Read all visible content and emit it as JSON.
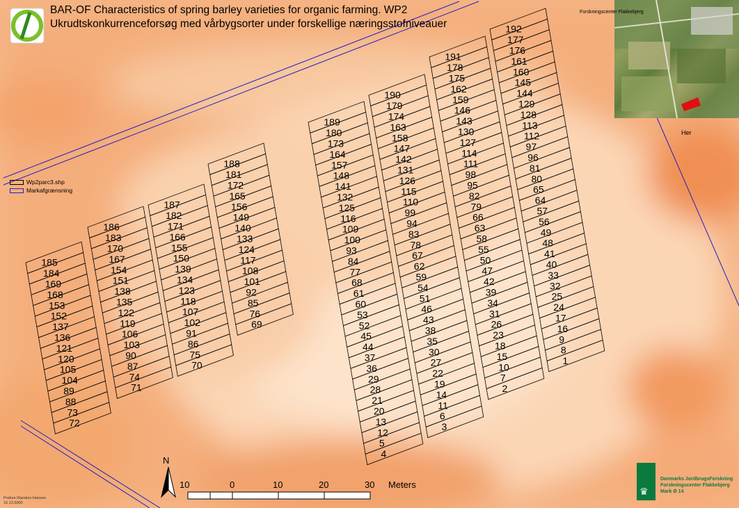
{
  "title_line1": "BAR-OF Characteristics of spring barley varieties for organic farming. WP2",
  "title_line2": "Ukrudtskonkurrenceforsøg med vårbygsorter under forskellige næringsstofniveauer",
  "inset_label": "Forskningscenter Flakkebjerg",
  "inset_marker_label": "Her",
  "legend": [
    {
      "label": "Wp2parc3.shp",
      "color": "#000000"
    },
    {
      "label": "Markafgrænsning",
      "color": "#2020c0"
    }
  ],
  "north_label": "N",
  "scale_labels": [
    "10",
    "0",
    "10",
    "20",
    "30"
  ],
  "scale_unit": "Meters",
  "author_line1": "Preben Klarskov Hansen",
  "author_line2": "10.12.0000",
  "org_lines": [
    "Danmarks JordbrugsForskning",
    "Forskningscenter Flakkebjerg",
    "Mark Ø 14"
  ],
  "colors": {
    "accent_green": "#0b7a3f",
    "boundary_blue": "#2020c0",
    "marker_red": "#e01010"
  },
  "blocks": [
    {
      "plots": [
        "185",
        "184",
        "169",
        "168",
        "153",
        "152",
        "137",
        "136",
        "121",
        "120",
        "105",
        "104",
        "89",
        "88",
        "73",
        "72"
      ]
    },
    {
      "plots": [
        "186",
        "183",
        "170",
        "167",
        "154",
        "151",
        "138",
        "135",
        "122",
        "119",
        "106",
        "103",
        "90",
        "87",
        "74",
        "71"
      ]
    },
    {
      "plots": [
        "187",
        "182",
        "171",
        "166",
        "155",
        "150",
        "139",
        "134",
        "123",
        "118",
        "107",
        "102",
        "91",
        "86",
        "75",
        "70"
      ]
    },
    {
      "plots": [
        "188",
        "181",
        "172",
        "165",
        "156",
        "149",
        "140",
        "133",
        "124",
        "117",
        "108",
        "101",
        "92",
        "85",
        "76",
        "69"
      ]
    },
    {
      "plots": [
        "189",
        "180",
        "173",
        "164",
        "157",
        "148",
        "141",
        "132",
        "125",
        "116",
        "109",
        "100",
        "93",
        "84",
        "77",
        "68",
        "61",
        "60",
        "53",
        "52",
        "45",
        "44",
        "37",
        "36",
        "29",
        "28",
        "21",
        "20",
        "13",
        "12",
        "5",
        "4"
      ]
    },
    {
      "plots": [
        "190",
        "179",
        "174",
        "163",
        "158",
        "147",
        "142",
        "131",
        "126",
        "115",
        "110",
        "99",
        "94",
        "83",
        "78",
        "67",
        "62",
        "59",
        "54",
        "51",
        "46",
        "43",
        "38",
        "35",
        "30",
        "27",
        "22",
        "19",
        "14",
        "11",
        "6",
        "3"
      ]
    },
    {
      "plots": [
        "191",
        "178",
        "175",
        "162",
        "159",
        "146",
        "143",
        "130",
        "127",
        "114",
        "111",
        "98",
        "95",
        "82",
        "79",
        "66",
        "63",
        "58",
        "55",
        "50",
        "47",
        "42",
        "39",
        "34",
        "31",
        "26",
        "23",
        "18",
        "15",
        "10",
        "7",
        "2"
      ]
    },
    {
      "plots": [
        "192",
        "177",
        "176",
        "161",
        "160",
        "145",
        "144",
        "129",
        "128",
        "113",
        "112",
        "97",
        "96",
        "81",
        "80",
        "65",
        "64",
        "57",
        "56",
        "49",
        "48",
        "41",
        "40",
        "33",
        "32",
        "25",
        "24",
        "17",
        "16",
        "9",
        "8",
        "1"
      ]
    }
  ]
}
